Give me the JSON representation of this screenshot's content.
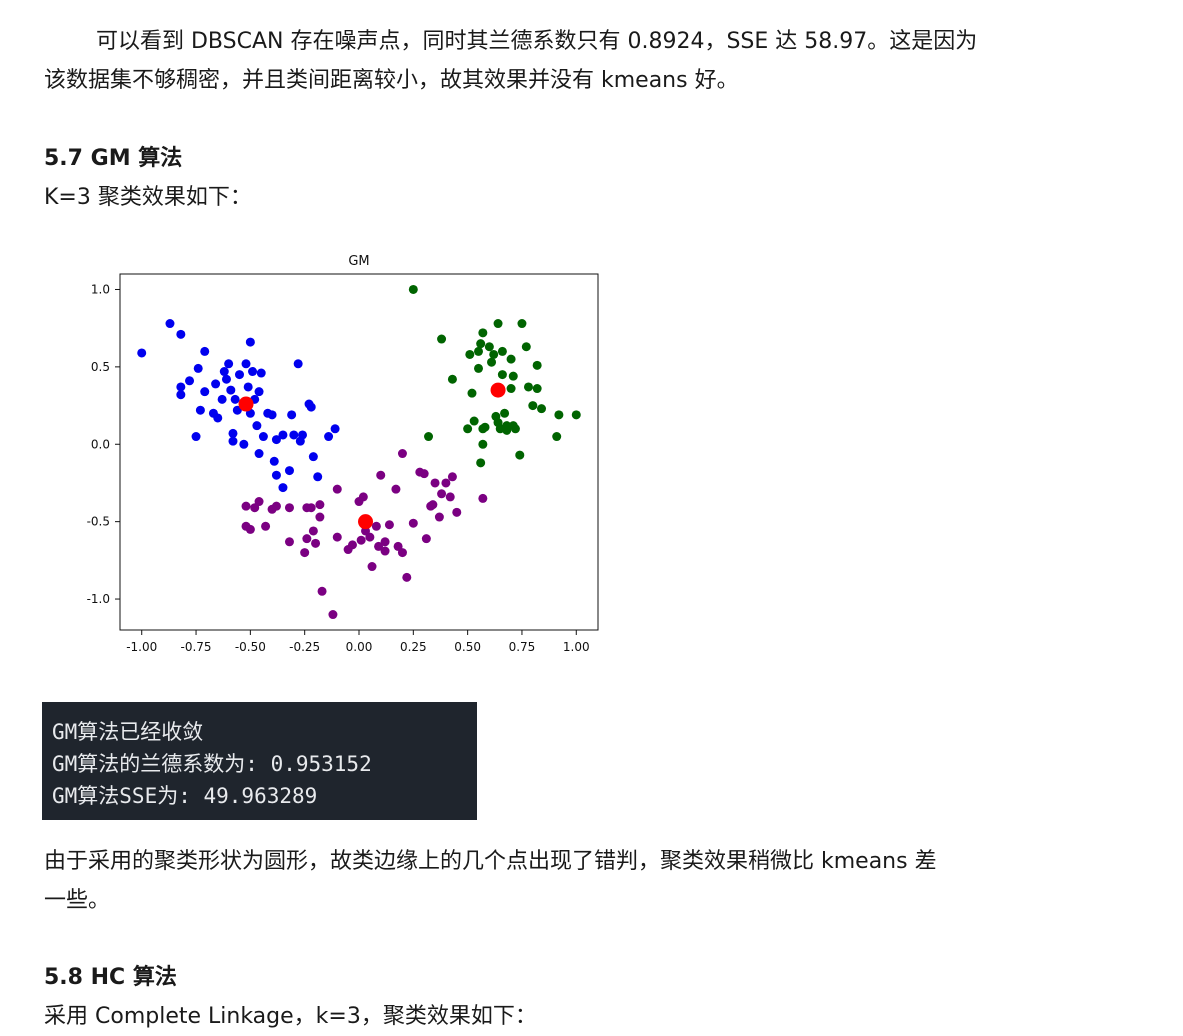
{
  "intro": {
    "line1": "可以看到 DBSCAN 存在噪声点，同时其兰德系数只有 0.8924，SSE 达 58.97。这是因为",
    "line2": "该数据集不够稠密，并且类间距离较小，故其效果并没有 kmeans 好。"
  },
  "section_gm": {
    "heading": "5.7 GM 算法",
    "subtitle": "K=3 聚类效果如下："
  },
  "chart_data": {
    "type": "scatter",
    "title": "GM",
    "xlim": [
      -1.1,
      1.1
    ],
    "ylim": [
      -1.2,
      1.1
    ],
    "xticks": [
      -1.0,
      -0.75,
      -0.5,
      -0.25,
      0.0,
      0.25,
      0.5,
      0.75,
      1.0
    ],
    "xtick_labels": [
      "-1.00",
      "-0.75",
      "-0.50",
      "-0.25",
      "0.00",
      "0.25",
      "0.50",
      "0.75",
      "1.00"
    ],
    "yticks": [
      1.0,
      0.5,
      0.0,
      -0.5,
      -1.0
    ],
    "ytick_labels": [
      "1.0",
      "0.5",
      "0.0",
      "-0.5",
      "-1.0"
    ],
    "grid": false,
    "series": [
      {
        "color": "#0000ee",
        "points": [
          [
            -1.0,
            0.59
          ],
          [
            -0.87,
            0.78
          ],
          [
            -0.82,
            0.71
          ],
          [
            -0.82,
            0.37
          ],
          [
            -0.82,
            0.32
          ],
          [
            -0.78,
            0.41
          ],
          [
            -0.75,
            0.05
          ],
          [
            -0.74,
            0.49
          ],
          [
            -0.73,
            0.22
          ],
          [
            -0.71,
            0.6
          ],
          [
            -0.71,
            0.34
          ],
          [
            -0.67,
            0.2
          ],
          [
            -0.66,
            0.39
          ],
          [
            -0.65,
            0.17
          ],
          [
            -0.63,
            0.29
          ],
          [
            -0.62,
            0.47
          ],
          [
            -0.61,
            0.42
          ],
          [
            -0.6,
            0.52
          ],
          [
            -0.59,
            0.35
          ],
          [
            -0.58,
            0.07
          ],
          [
            -0.58,
            0.02
          ],
          [
            -0.57,
            0.29
          ],
          [
            -0.56,
            0.22
          ],
          [
            -0.55,
            0.45
          ],
          [
            -0.53,
            0.0
          ],
          [
            -0.52,
            0.52
          ],
          [
            -0.51,
            0.37
          ],
          [
            -0.5,
            0.66
          ],
          [
            -0.5,
            0.2
          ],
          [
            -0.49,
            0.47
          ],
          [
            -0.48,
            0.29
          ],
          [
            -0.47,
            0.12
          ],
          [
            -0.46,
            0.34
          ],
          [
            -0.46,
            -0.06
          ],
          [
            -0.45,
            0.46
          ],
          [
            -0.44,
            0.05
          ],
          [
            -0.42,
            0.2
          ],
          [
            -0.4,
            0.19
          ],
          [
            -0.39,
            -0.11
          ],
          [
            -0.38,
            0.03
          ],
          [
            -0.38,
            -0.2
          ],
          [
            -0.35,
            0.06
          ],
          [
            -0.35,
            -0.28
          ],
          [
            -0.32,
            -0.17
          ],
          [
            -0.31,
            0.19
          ],
          [
            -0.3,
            0.06
          ],
          [
            -0.28,
            0.52
          ],
          [
            -0.27,
            0.02
          ],
          [
            -0.26,
            0.06
          ],
          [
            -0.23,
            0.26
          ],
          [
            -0.22,
            0.24
          ],
          [
            -0.21,
            -0.08
          ],
          [
            -0.19,
            -0.21
          ],
          [
            -0.14,
            0.05
          ],
          [
            -0.11,
            0.1
          ]
        ]
      },
      {
        "color": "#7b0082",
        "points": [
          [
            -0.52,
            -0.4
          ],
          [
            -0.52,
            -0.53
          ],
          [
            -0.5,
            -0.55
          ],
          [
            -0.48,
            -0.41
          ],
          [
            -0.46,
            -0.37
          ],
          [
            -0.43,
            -0.53
          ],
          [
            -0.4,
            -0.42
          ],
          [
            -0.38,
            -0.4
          ],
          [
            -0.32,
            -0.41
          ],
          [
            -0.32,
            -0.63
          ],
          [
            -0.25,
            -0.7
          ],
          [
            -0.24,
            -0.41
          ],
          [
            -0.24,
            -0.61
          ],
          [
            -0.22,
            -0.41
          ],
          [
            -0.21,
            -0.56
          ],
          [
            -0.2,
            -0.64
          ],
          [
            -0.18,
            -0.39
          ],
          [
            -0.18,
            -0.47
          ],
          [
            -0.17,
            -0.95
          ],
          [
            -0.12,
            -1.1
          ],
          [
            -0.1,
            -0.6
          ],
          [
            -0.1,
            -0.29
          ],
          [
            -0.05,
            -0.68
          ],
          [
            -0.03,
            -0.65
          ],
          [
            0.0,
            -0.37
          ],
          [
            0.01,
            -0.62
          ],
          [
            0.02,
            -0.34
          ],
          [
            0.03,
            -0.56
          ],
          [
            0.05,
            -0.6
          ],
          [
            0.06,
            -0.79
          ],
          [
            0.08,
            -0.53
          ],
          [
            0.09,
            -0.66
          ],
          [
            0.1,
            -0.2
          ],
          [
            0.12,
            -0.63
          ],
          [
            0.12,
            -0.69
          ],
          [
            0.14,
            -0.52
          ],
          [
            0.17,
            -0.29
          ],
          [
            0.18,
            -0.66
          ],
          [
            0.2,
            -0.7
          ],
          [
            0.2,
            -0.06
          ],
          [
            0.22,
            -0.86
          ],
          [
            0.25,
            -0.51
          ],
          [
            0.28,
            -0.18
          ],
          [
            0.3,
            -0.19
          ],
          [
            0.31,
            -0.61
          ],
          [
            0.33,
            -0.4
          ],
          [
            0.34,
            -0.39
          ],
          [
            0.35,
            -0.25
          ],
          [
            0.37,
            -0.47
          ],
          [
            0.38,
            -0.32
          ],
          [
            0.4,
            -0.25
          ],
          [
            0.42,
            -0.34
          ],
          [
            0.43,
            -0.21
          ],
          [
            0.45,
            -0.44
          ],
          [
            0.57,
            -0.35
          ]
        ]
      },
      {
        "color": "#006400",
        "points": [
          [
            0.25,
            1.0
          ],
          [
            0.32,
            0.05
          ],
          [
            0.38,
            0.68
          ],
          [
            0.43,
            0.42
          ],
          [
            0.5,
            0.1
          ],
          [
            0.51,
            0.58
          ],
          [
            0.52,
            0.33
          ],
          [
            0.53,
            0.15
          ],
          [
            0.55,
            0.6
          ],
          [
            0.55,
            0.49
          ],
          [
            0.56,
            0.65
          ],
          [
            0.56,
            -0.12
          ],
          [
            0.57,
            0.1
          ],
          [
            0.57,
            0.0
          ],
          [
            0.57,
            0.72
          ],
          [
            0.58,
            0.11
          ],
          [
            0.6,
            0.63
          ],
          [
            0.61,
            0.53
          ],
          [
            0.62,
            0.58
          ],
          [
            0.63,
            0.18
          ],
          [
            0.64,
            0.14
          ],
          [
            0.64,
            0.78
          ],
          [
            0.65,
            0.35
          ],
          [
            0.65,
            0.1
          ],
          [
            0.66,
            0.6
          ],
          [
            0.66,
            0.45
          ],
          [
            0.67,
            0.2
          ],
          [
            0.68,
            0.12
          ],
          [
            0.68,
            0.09
          ],
          [
            0.7,
            0.55
          ],
          [
            0.7,
            0.36
          ],
          [
            0.71,
            0.12
          ],
          [
            0.71,
            0.44
          ],
          [
            0.72,
            0.1
          ],
          [
            0.74,
            -0.07
          ],
          [
            0.75,
            0.78
          ],
          [
            0.77,
            0.63
          ],
          [
            0.78,
            0.37
          ],
          [
            0.8,
            0.25
          ],
          [
            0.82,
            0.51
          ],
          [
            0.82,
            0.36
          ],
          [
            0.84,
            0.23
          ],
          [
            0.91,
            0.05
          ],
          [
            0.92,
            0.19
          ],
          [
            1.0,
            0.19
          ]
        ]
      }
    ],
    "centers": {
      "color": "#ff0000",
      "points": [
        [
          -0.52,
          0.26
        ],
        [
          0.03,
          -0.5
        ],
        [
          0.64,
          0.35
        ]
      ]
    }
  },
  "console": {
    "line1": "GM算法已经收敛",
    "line2": "GM算法的兰德系数为: 0.953152",
    "line3": "GM算法SSE为: 49.963289"
  },
  "conclusion": {
    "line1": "由于采用的聚类形状为圆形，故类边缘上的几个点出现了错判，聚类效果稍微比 kmeans 差",
    "line2": "一些。"
  },
  "section_hc": {
    "heading": "5.8 HC 算法",
    "subtitle": "采用 Complete Linkage，k=3，聚类效果如下："
  }
}
